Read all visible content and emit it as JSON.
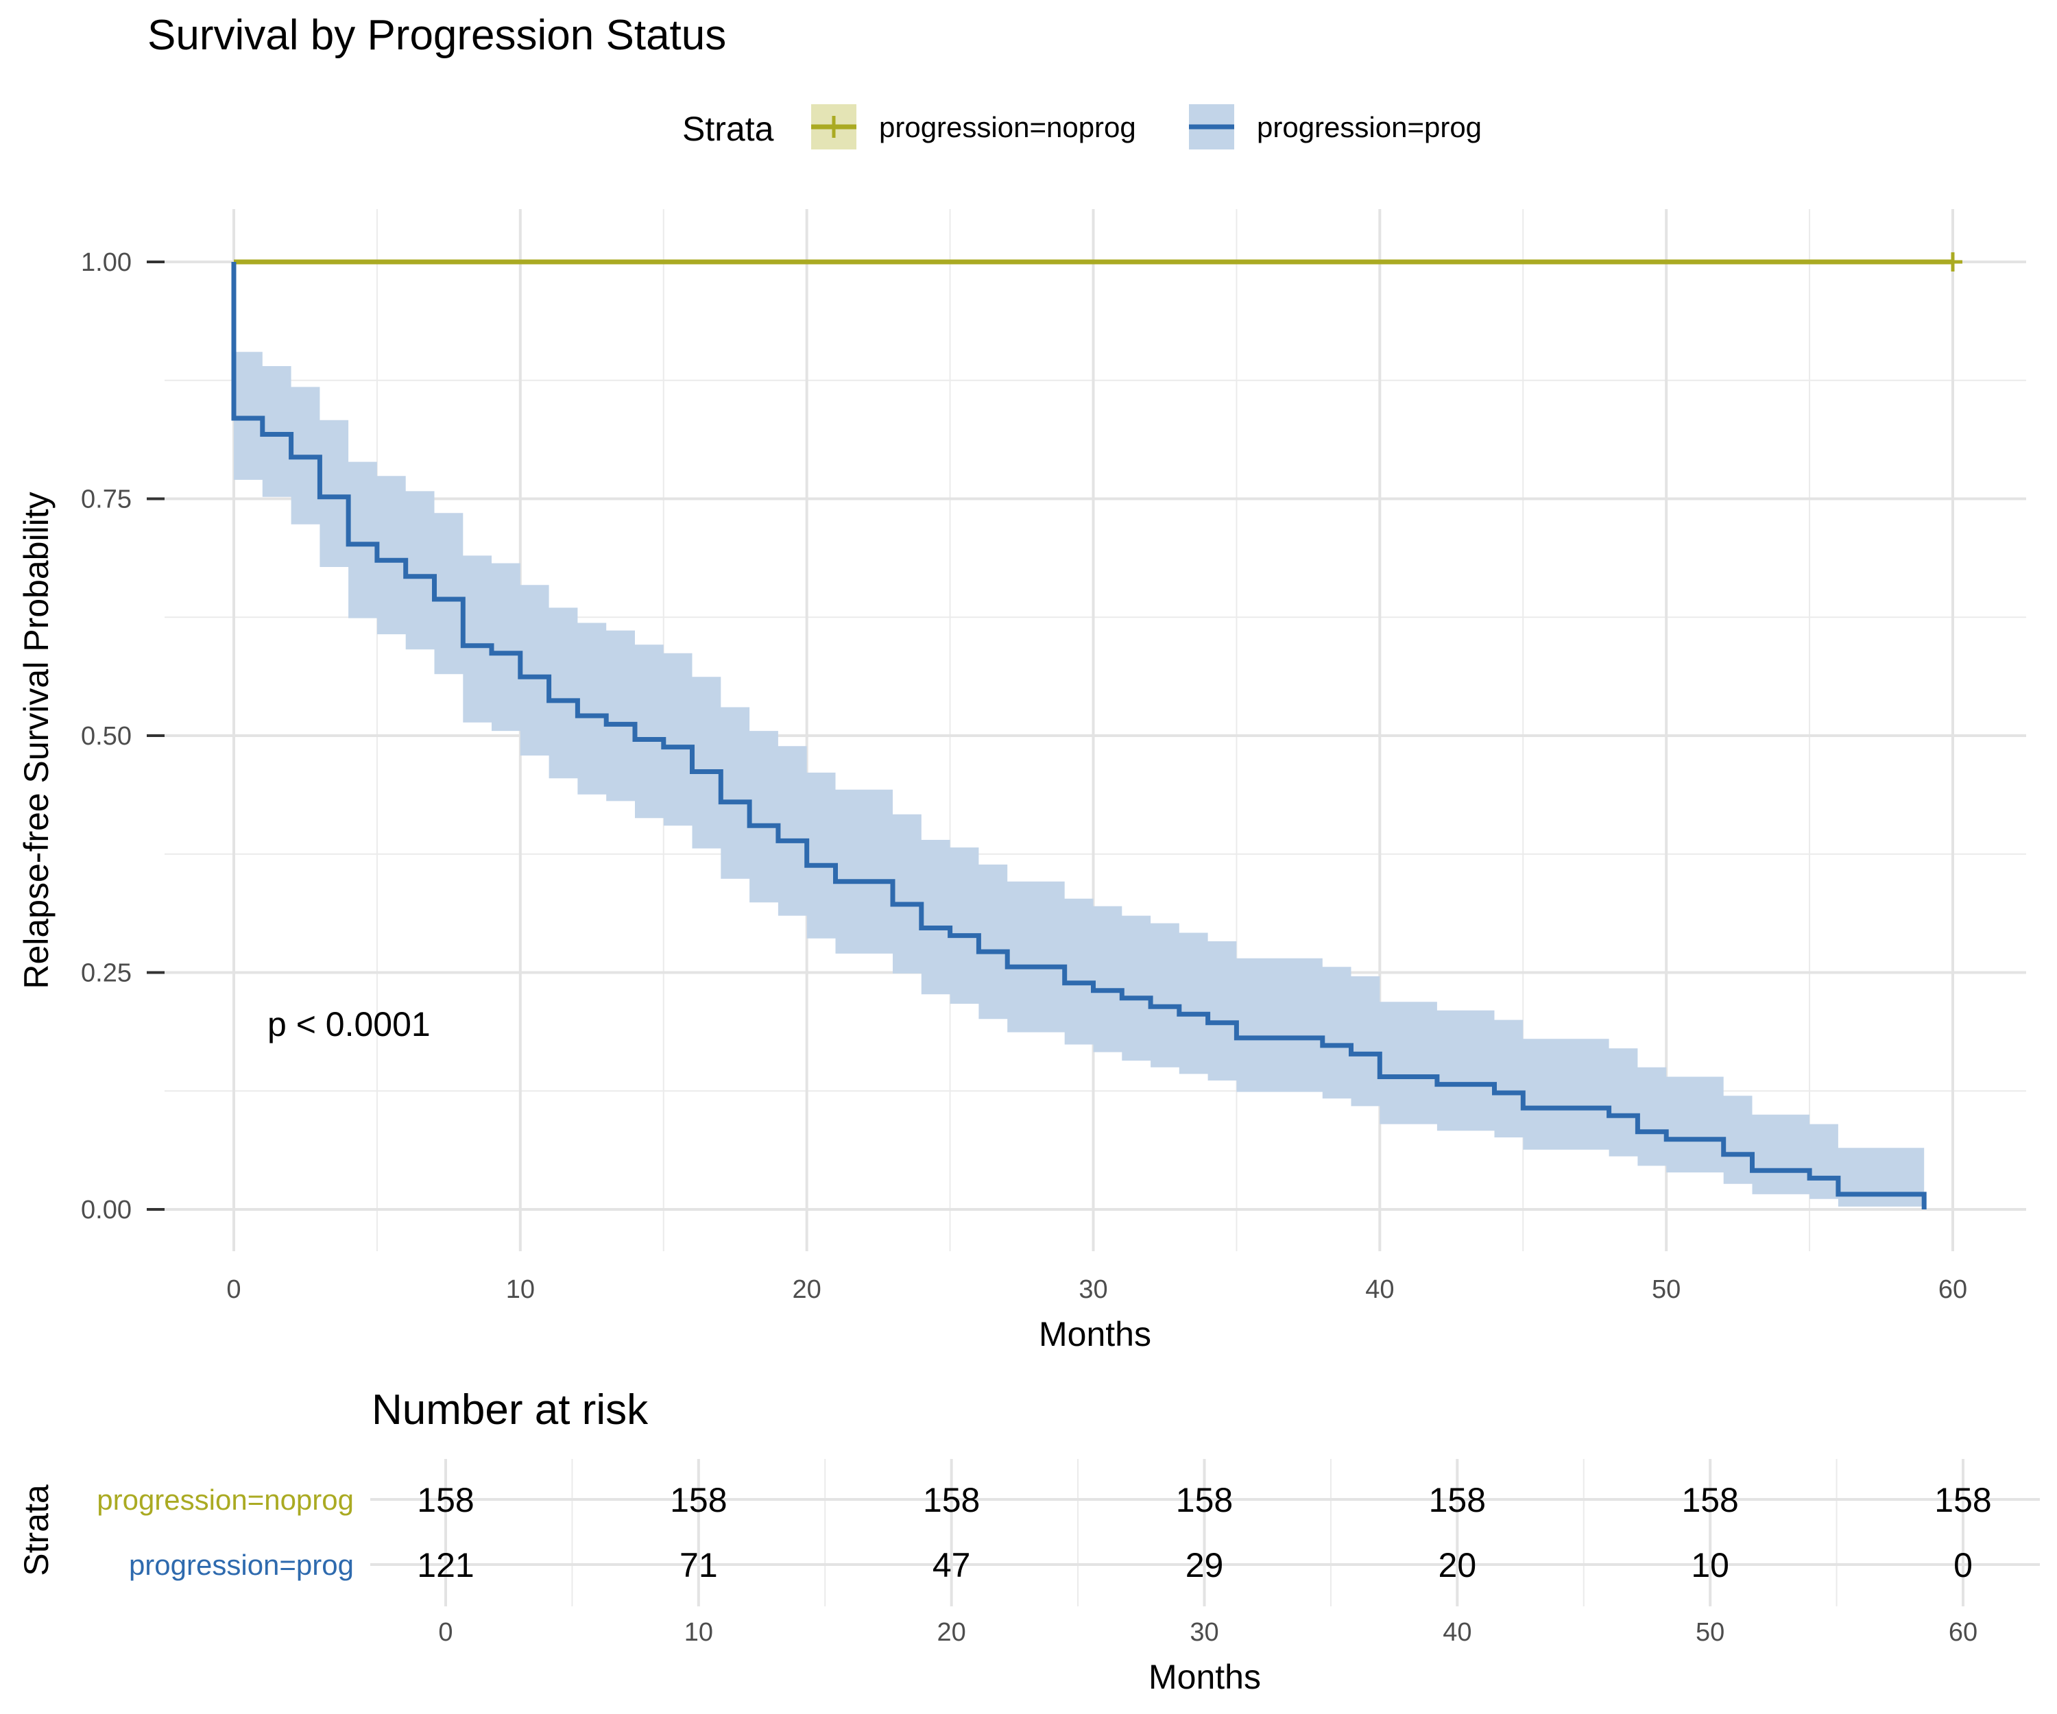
{
  "chart_data": [
    {
      "type": "line",
      "subtype": "kaplan-meier step curves with confidence bands",
      "title": "Survival by Progression Status",
      "xlabel": "Months",
      "ylabel": "Relapse-free Survival Probability",
      "xlim": [
        0,
        60
      ],
      "ylim": [
        0,
        1
      ],
      "x_ticks": [
        0,
        10,
        20,
        30,
        40,
        50,
        60
      ],
      "y_ticks": [
        0.0,
        0.25,
        0.5,
        0.75,
        1.0
      ],
      "x_tick_labels": [
        "0",
        "10",
        "20",
        "30",
        "40",
        "50",
        "60"
      ],
      "y_tick_labels": [
        "0.00",
        "0.25",
        "0.50",
        "0.75",
        "1.00"
      ],
      "grid": true,
      "legend": {
        "placement": "top",
        "title": "Strata",
        "entries": [
          "progression=noprog",
          "progression=prog"
        ]
      },
      "annotation": "p < 0.0001",
      "series": [
        {
          "name": "progression=noprog",
          "color": "#AAAA22",
          "band_color": "#E4E4B5",
          "steps": [
            [
              0,
              1.0
            ],
            [
              60,
              1.0
            ]
          ],
          "censor_marks": [
            60
          ],
          "lower": [
            [
              0,
              1.0
            ],
            [
              60,
              1.0
            ]
          ],
          "upper": [
            [
              0,
              1.0
            ],
            [
              60,
              1.0
            ]
          ]
        },
        {
          "name": "progression=prog",
          "color": "#2E6AAE",
          "band_color": "#C2D4E8",
          "steps": [
            [
              0,
              1.0
            ],
            [
              0,
              0.835
            ],
            [
              1,
              0.818
            ],
            [
              2,
              0.794
            ],
            [
              3,
              0.752
            ],
            [
              4,
              0.702
            ],
            [
              5,
              0.685
            ],
            [
              6,
              0.668
            ],
            [
              7,
              0.644
            ],
            [
              8,
              0.595
            ],
            [
              9,
              0.587
            ],
            [
              10,
              0.562
            ],
            [
              11,
              0.537
            ],
            [
              12,
              0.521
            ],
            [
              13,
              0.512
            ],
            [
              14,
              0.496
            ],
            [
              15,
              0.488
            ],
            [
              16,
              0.462
            ],
            [
              17,
              0.43
            ],
            [
              18,
              0.405
            ],
            [
              19,
              0.389
            ],
            [
              20,
              0.363
            ],
            [
              21,
              0.346
            ],
            [
              23,
              0.322
            ],
            [
              24,
              0.297
            ],
            [
              25,
              0.289
            ],
            [
              26,
              0.272
            ],
            [
              27,
              0.256
            ],
            [
              29,
              0.239
            ],
            [
              30,
              0.231
            ],
            [
              31,
              0.223
            ],
            [
              32,
              0.214
            ],
            [
              33,
              0.206
            ],
            [
              34,
              0.197
            ],
            [
              35,
              0.181
            ],
            [
              38,
              0.173
            ],
            [
              39,
              0.164
            ],
            [
              40,
              0.14
            ],
            [
              42,
              0.132
            ],
            [
              44,
              0.123
            ],
            [
              45,
              0.107
            ],
            [
              48,
              0.099
            ],
            [
              49,
              0.082
            ],
            [
              50,
              0.074
            ],
            [
              52,
              0.058
            ],
            [
              53,
              0.041
            ],
            [
              55,
              0.033
            ],
            [
              56,
              0.016
            ],
            [
              59,
              0.016
            ],
            [
              59,
              0.0
            ]
          ],
          "lower": [
            [
              0,
              0.77
            ],
            [
              1,
              0.752
            ],
            [
              2,
              0.723
            ],
            [
              3,
              0.678
            ],
            [
              4,
              0.624
            ],
            [
              5,
              0.607
            ],
            [
              6,
              0.591
            ],
            [
              7,
              0.565
            ],
            [
              8,
              0.514
            ],
            [
              9,
              0.505
            ],
            [
              10,
              0.479
            ],
            [
              11,
              0.455
            ],
            [
              12,
              0.438
            ],
            [
              13,
              0.431
            ],
            [
              14,
              0.413
            ],
            [
              15,
              0.405
            ],
            [
              16,
              0.381
            ],
            [
              17,
              0.349
            ],
            [
              18,
              0.324
            ],
            [
              19,
              0.31
            ],
            [
              20,
              0.286
            ],
            [
              21,
              0.27
            ],
            [
              23,
              0.249
            ],
            [
              24,
              0.227
            ],
            [
              25,
              0.217
            ],
            [
              26,
              0.201
            ],
            [
              27,
              0.187
            ],
            [
              29,
              0.174
            ],
            [
              30,
              0.166
            ],
            [
              31,
              0.157
            ],
            [
              32,
              0.15
            ],
            [
              33,
              0.143
            ],
            [
              34,
              0.136
            ],
            [
              35,
              0.124
            ],
            [
              38,
              0.117
            ],
            [
              39,
              0.109
            ],
            [
              40,
              0.09
            ],
            [
              42,
              0.083
            ],
            [
              44,
              0.076
            ],
            [
              45,
              0.063
            ],
            [
              48,
              0.056
            ],
            [
              49,
              0.046
            ],
            [
              50,
              0.039
            ],
            [
              52,
              0.027
            ],
            [
              53,
              0.016
            ],
            [
              55,
              0.011
            ],
            [
              56,
              0.003
            ],
            [
              59,
              0.003
            ]
          ],
          "upper": [
            [
              0,
              0.905
            ],
            [
              1,
              0.89
            ],
            [
              2,
              0.868
            ],
            [
              3,
              0.833
            ],
            [
              4,
              0.789
            ],
            [
              5,
              0.774
            ],
            [
              6,
              0.758
            ],
            [
              7,
              0.735
            ],
            [
              8,
              0.69
            ],
            [
              9,
              0.682
            ],
            [
              10,
              0.659
            ],
            [
              11,
              0.635
            ],
            [
              12,
              0.619
            ],
            [
              13,
              0.611
            ],
            [
              14,
              0.596
            ],
            [
              15,
              0.587
            ],
            [
              16,
              0.562
            ],
            [
              17,
              0.53
            ],
            [
              18,
              0.505
            ],
            [
              19,
              0.489
            ],
            [
              20,
              0.461
            ],
            [
              21,
              0.443
            ],
            [
              23,
              0.417
            ],
            [
              24,
              0.39
            ],
            [
              25,
              0.382
            ],
            [
              26,
              0.364
            ],
            [
              27,
              0.346
            ],
            [
              29,
              0.328
            ],
            [
              30,
              0.32
            ],
            [
              31,
              0.31
            ],
            [
              32,
              0.302
            ],
            [
              33,
              0.292
            ],
            [
              34,
              0.283
            ],
            [
              35,
              0.265
            ],
            [
              38,
              0.256
            ],
            [
              39,
              0.246
            ],
            [
              40,
              0.219
            ],
            [
              42,
              0.21
            ],
            [
              44,
              0.2
            ],
            [
              45,
              0.18
            ],
            [
              48,
              0.17
            ],
            [
              49,
              0.15
            ],
            [
              50,
              0.14
            ],
            [
              52,
              0.12
            ],
            [
              53,
              0.1
            ],
            [
              55,
              0.09
            ],
            [
              56,
              0.065
            ],
            [
              59,
              0.065
            ]
          ]
        }
      ]
    },
    {
      "type": "table",
      "title": "Number at risk",
      "xlabel": "Months",
      "ylabel": "Strata",
      "xlim": [
        0,
        60
      ],
      "x_ticks": [
        0,
        10,
        20,
        30,
        40,
        50,
        60
      ],
      "x_tick_labels": [
        "0",
        "10",
        "20",
        "30",
        "40",
        "50",
        "60"
      ],
      "rows": [
        {
          "name": "progression=noprog",
          "color": "#AAAA22",
          "values": [
            "158",
            "158",
            "158",
            "158",
            "158",
            "158",
            "158"
          ]
        },
        {
          "name": "progression=prog",
          "color": "#2E6AAE",
          "values": [
            "121",
            "71",
            "47",
            "29",
            "20",
            "10",
            "0"
          ]
        }
      ]
    }
  ]
}
